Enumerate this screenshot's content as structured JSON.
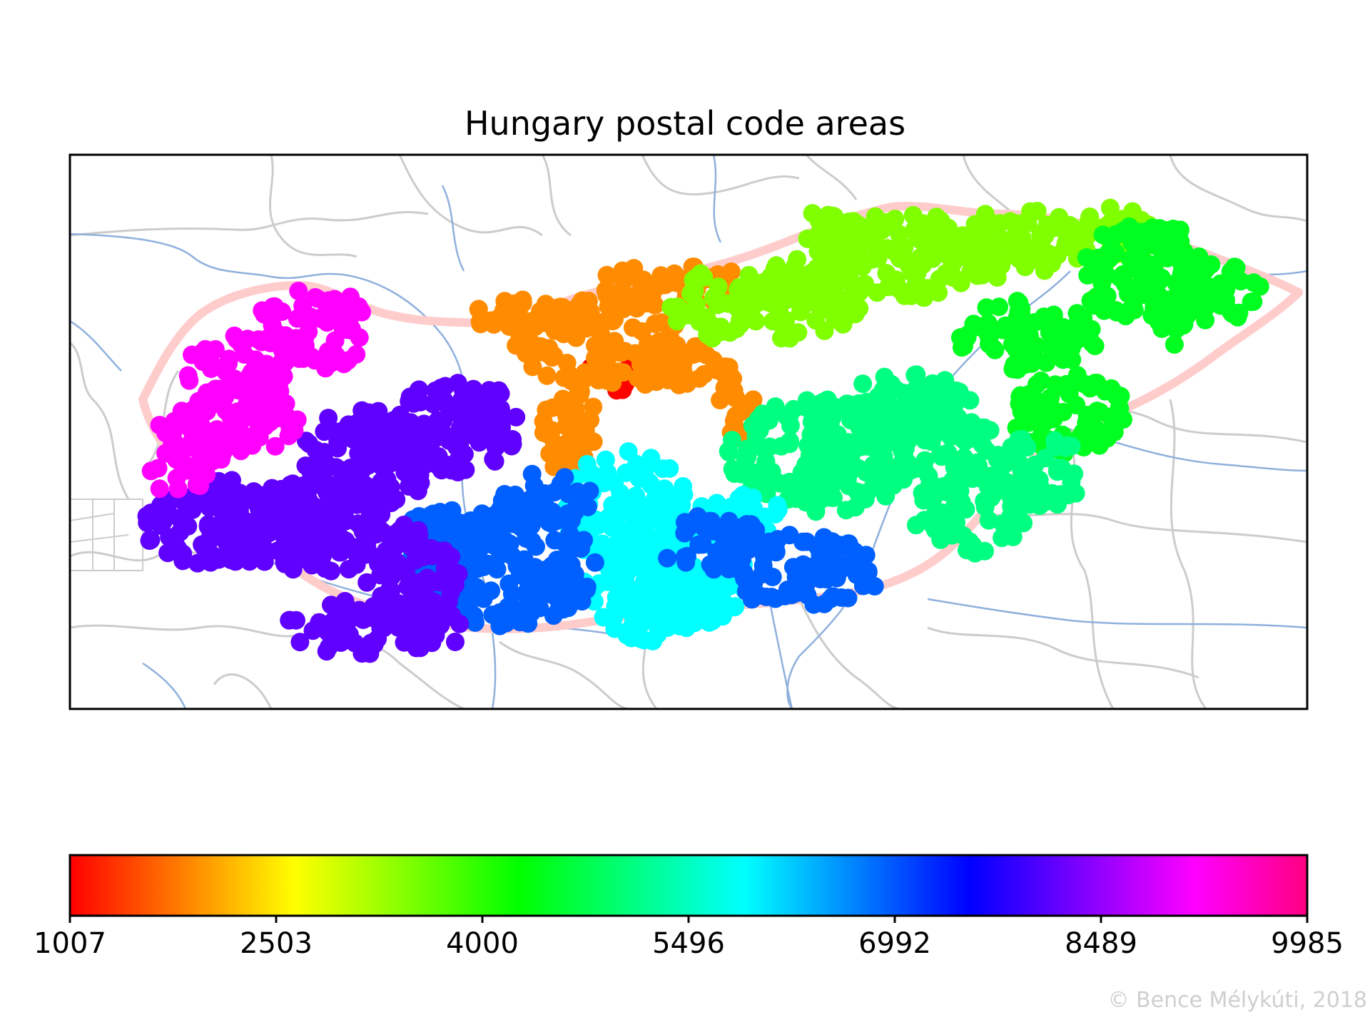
{
  "title": "Hungary postal code areas",
  "credit": "© Bence Mélykúti, 2018",
  "colorbar": {
    "colormap": "gist_rainbow",
    "min": 1007,
    "max": 9985,
    "ticks": [
      "1007",
      "2503",
      "4000",
      "5496",
      "6992",
      "8489",
      "9985"
    ],
    "stops": [
      "#ff0000",
      "#ff7f00",
      "#ffff00",
      "#80ff00",
      "#00ff00",
      "#00ff80",
      "#00ffff",
      "#0080ff",
      "#0000ff",
      "#8000ff",
      "#ff00ff",
      "#ff0080"
    ]
  },
  "map": {
    "country_outline_color": "#ffcccc",
    "border_color": "#cccccc",
    "river_color": "#8fb0dd",
    "regions": [
      {
        "name": "1",
        "color": "#ff0000"
      },
      {
        "name": "2",
        "color": "#ff8c00"
      },
      {
        "name": "3",
        "color": "#7fff00"
      },
      {
        "name": "4",
        "color": "#00ff20"
      },
      {
        "name": "5",
        "color": "#00ff80"
      },
      {
        "name": "6",
        "color": "#00ffff"
      },
      {
        "name": "7",
        "color": "#0060ff"
      },
      {
        "name": "8",
        "color": "#6000ff"
      },
      {
        "name": "9",
        "color": "#ff00ff"
      }
    ]
  }
}
